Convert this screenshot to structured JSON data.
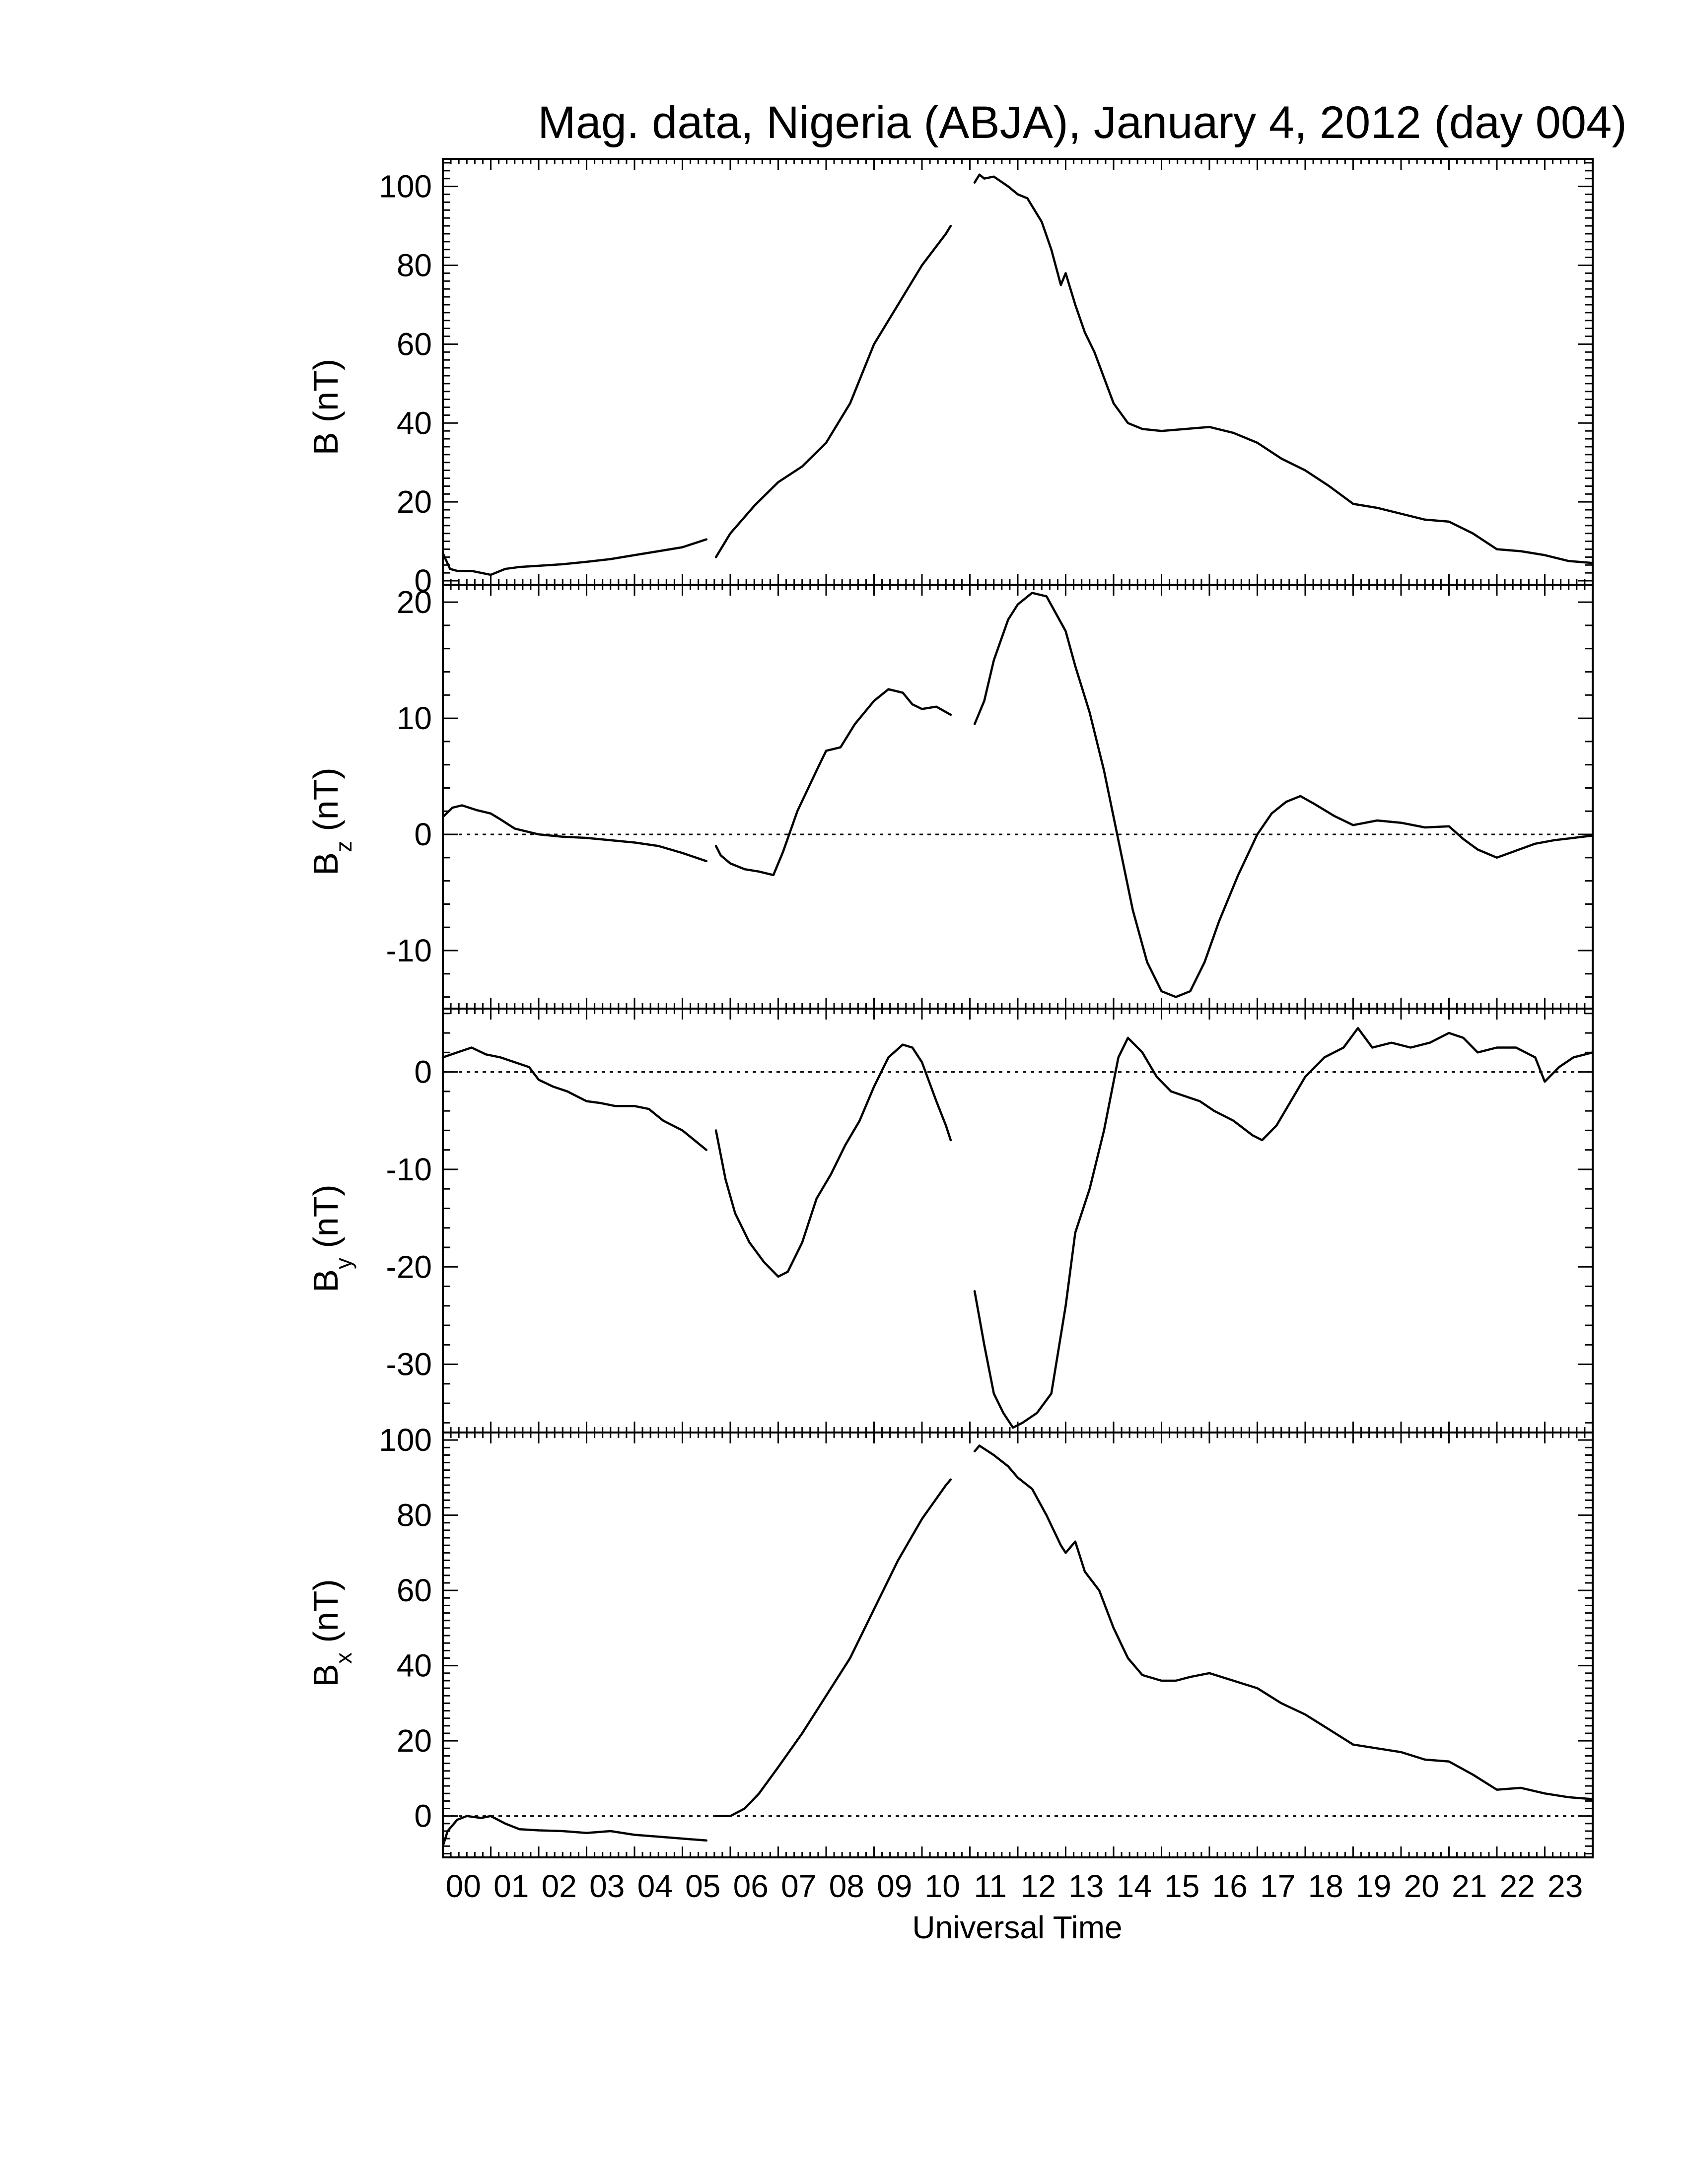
{
  "figure": {
    "title": "Mag. data, Nigeria (ABJA), January 4, 2012 (day 004)",
    "xlabel": "Universal Time"
  },
  "chart_data": [
    {
      "type": "line",
      "id": "B",
      "ylabel": "B (nT)",
      "ylabel_main": "B (nT)",
      "ylabel_sub": "",
      "ylabel_rest": "",
      "xlim": [
        0,
        24
      ],
      "ylim": [
        -1,
        107
      ],
      "yticks": [
        0,
        20,
        40,
        60,
        80,
        100
      ],
      "zero_line": false,
      "segments": [
        {
          "x": [
            0,
            0.15,
            0.3,
            0.6,
            1.0,
            1.3,
            1.6,
            2.0,
            2.5,
            3.0,
            3.5,
            4.0,
            4.5,
            5.0,
            5.5
          ],
          "y": [
            7,
            3,
            2.5,
            2.5,
            1.5,
            3,
            3.5,
            3.8,
            4.2,
            4.8,
            5.5,
            6.5,
            7.5,
            8.5,
            10.5
          ]
        },
        {
          "x": [
            5.7,
            6.0,
            6.5,
            7.0,
            7.5,
            8.0,
            8.5,
            9.0,
            9.5,
            10.0,
            10.5,
            10.6
          ],
          "y": [
            6,
            12,
            19,
            25,
            29,
            35,
            45,
            60,
            70,
            80,
            88,
            90
          ]
        },
        {
          "x": [
            11.1,
            11.2,
            11.3,
            11.5,
            11.8,
            12.0,
            12.2,
            12.5,
            12.7,
            12.9,
            13.0,
            13.2,
            13.4,
            13.6,
            14.0,
            14.3,
            14.6,
            15.0,
            15.5,
            16.0,
            16.5,
            17.0,
            17.5,
            18.0,
            18.5,
            19.0,
            19.5,
            20.0,
            20.5,
            21.0,
            21.5,
            22.0,
            22.5,
            23.0,
            23.5,
            24.0
          ],
          "y": [
            101,
            103,
            102,
            102.5,
            100,
            98,
            97,
            91,
            84,
            75,
            78,
            70,
            63,
            58,
            45,
            40,
            38.5,
            38,
            38.5,
            39,
            37.5,
            35,
            31,
            28,
            24,
            19.5,
            18.5,
            17,
            15.5,
            15,
            12,
            8,
            7.5,
            6.5,
            5,
            4.5
          ]
        }
      ]
    },
    {
      "type": "line",
      "id": "Bz",
      "ylabel": "Bz (nT)",
      "ylabel_main": "B",
      "ylabel_sub": "z",
      "ylabel_rest": " (nT)",
      "xlim": [
        0,
        24
      ],
      "ylim": [
        -15,
        21.5
      ],
      "yticks": [
        -10,
        0,
        10,
        20
      ],
      "zero_line": true,
      "segments": [
        {
          "x": [
            0,
            0.2,
            0.4,
            0.7,
            1.0,
            1.2,
            1.5,
            2.0,
            2.5,
            3.0,
            3.5,
            4.0,
            4.5,
            5.0,
            5.5
          ],
          "y": [
            1.5,
            2.3,
            2.5,
            2.1,
            1.8,
            1.3,
            0.5,
            0.0,
            -0.2,
            -0.3,
            -0.5,
            -0.7,
            -1.0,
            -1.6,
            -2.3
          ]
        },
        {
          "x": [
            5.7,
            5.8,
            6.0,
            6.3,
            6.6,
            6.9,
            7.1,
            7.4,
            7.8,
            8.0,
            8.3,
            8.6,
            9.0,
            9.3,
            9.6,
            9.8,
            10.0,
            10.3,
            10.6
          ],
          "y": [
            -1.0,
            -1.8,
            -2.5,
            -3.0,
            -3.2,
            -3.5,
            -1.5,
            2.0,
            5.5,
            7.2,
            7.5,
            9.5,
            11.5,
            12.5,
            12.2,
            11.2,
            10.8,
            11.0,
            10.3
          ]
        },
        {
          "x": [
            11.1,
            11.3,
            11.5,
            11.8,
            12.0,
            12.3,
            12.6,
            12.8,
            13.0,
            13.2,
            13.5,
            13.8,
            14.0,
            14.2,
            14.4,
            14.7,
            15.0,
            15.3,
            15.6,
            15.9,
            16.2,
            16.6,
            17.0,
            17.3,
            17.6,
            17.9,
            18.2,
            18.6,
            19.0,
            19.5,
            20.0,
            20.5,
            21.0,
            21.3,
            21.6,
            22.0,
            22.4,
            22.8,
            23.2,
            23.6,
            24.0
          ],
          "y": [
            9.5,
            11.5,
            15.0,
            18.5,
            19.8,
            20.8,
            20.5,
            19.0,
            17.5,
            14.5,
            10.5,
            5.5,
            1.5,
            -2.5,
            -6.5,
            -11.0,
            -13.5,
            -14.0,
            -13.5,
            -11.0,
            -7.5,
            -3.5,
            0.0,
            1.8,
            2.8,
            3.3,
            2.6,
            1.6,
            0.8,
            1.2,
            1.0,
            0.6,
            0.7,
            -0.4,
            -1.3,
            -2.0,
            -1.4,
            -0.8,
            -0.5,
            -0.3,
            -0.1
          ]
        }
      ]
    },
    {
      "type": "line",
      "id": "By",
      "ylabel": "By (nT)",
      "ylabel_main": "B",
      "ylabel_sub": "y",
      "ylabel_rest": " (nT)",
      "xlim": [
        0,
        24
      ],
      "ylim": [
        -37,
        6.5
      ],
      "yticks": [
        -30,
        -20,
        -10,
        0
      ],
      "zero_line": true,
      "segments": [
        {
          "x": [
            0,
            0.3,
            0.6,
            0.9,
            1.2,
            1.5,
            1.8,
            2.0,
            2.3,
            2.6,
            3.0,
            3.3,
            3.6,
            4.0,
            4.3,
            4.6,
            5.0,
            5.5
          ],
          "y": [
            1.5,
            2.0,
            2.5,
            1.8,
            1.5,
            1.0,
            0.5,
            -0.8,
            -1.5,
            -2.0,
            -3.0,
            -3.2,
            -3.5,
            -3.5,
            -3.8,
            -5.0,
            -6.0,
            -8.0
          ]
        },
        {
          "x": [
            5.7,
            5.9,
            6.1,
            6.4,
            6.7,
            7.0,
            7.2,
            7.5,
            7.8,
            8.1,
            8.4,
            8.7,
            9.0,
            9.3,
            9.6,
            9.8,
            10.0,
            10.3,
            10.5,
            10.6
          ],
          "y": [
            -6.0,
            -11.0,
            -14.5,
            -17.5,
            -19.5,
            -21.0,
            -20.5,
            -17.5,
            -13.0,
            -10.5,
            -7.5,
            -5.0,
            -1.5,
            1.5,
            2.8,
            2.5,
            1.0,
            -3.0,
            -5.5,
            -7.0
          ]
        },
        {
          "x": [
            11.1,
            11.3,
            11.5,
            11.7,
            11.9,
            12.1,
            12.4,
            12.7,
            13.0,
            13.2,
            13.5,
            13.8,
            14.1,
            14.3,
            14.6,
            14.9,
            15.2,
            15.5,
            15.8,
            16.1,
            16.5,
            16.9,
            17.1,
            17.4,
            17.7,
            18.0,
            18.4,
            18.8,
            19.1,
            19.4,
            19.8,
            20.2,
            20.6,
            21.0,
            21.3,
            21.6,
            22.0,
            22.4,
            22.8,
            23.0,
            23.3,
            23.6,
            24.0
          ],
          "y": [
            -22.5,
            -28.0,
            -33.0,
            -35.0,
            -36.5,
            -36.0,
            -35.0,
            -33.0,
            -24.0,
            -16.5,
            -12.0,
            -6.0,
            1.5,
            3.5,
            2.0,
            -0.5,
            -2.0,
            -2.5,
            -3.0,
            -4.0,
            -5.0,
            -6.5,
            -7.0,
            -5.5,
            -3.0,
            -0.5,
            1.5,
            2.5,
            4.5,
            2.5,
            3.0,
            2.5,
            3.0,
            4.0,
            3.5,
            2.0,
            2.5,
            2.5,
            1.5,
            -1.0,
            0.5,
            1.5,
            2.0
          ]
        }
      ]
    },
    {
      "type": "line",
      "id": "Bx",
      "ylabel": "Bx (nT)",
      "ylabel_main": "B",
      "ylabel_sub": "x",
      "ylabel_rest": " (nT)",
      "xlim": [
        0,
        24
      ],
      "ylim": [
        -11,
        102
      ],
      "yticks": [
        0,
        20,
        40,
        60,
        80,
        100
      ],
      "zero_line": true,
      "segments": [
        {
          "x": [
            0,
            0.1,
            0.3,
            0.5,
            0.8,
            1.0,
            1.3,
            1.6,
            2.0,
            2.5,
            3.0,
            3.5,
            4.0,
            4.5,
            5.0,
            5.5
          ],
          "y": [
            -8.0,
            -4.0,
            -1.0,
            0.0,
            -0.5,
            0.0,
            -2.0,
            -3.5,
            -3.8,
            -4.0,
            -4.5,
            -4.0,
            -5.0,
            -5.5,
            -6.0,
            -6.5
          ]
        },
        {
          "x": [
            5.7,
            6.0,
            6.3,
            6.6,
            7.0,
            7.5,
            8.0,
            8.5,
            9.0,
            9.5,
            10.0,
            10.5,
            10.6
          ],
          "y": [
            0.0,
            0.0,
            2.0,
            6.0,
            13.0,
            22.0,
            32.0,
            42.0,
            55.0,
            68.0,
            79.0,
            88.0,
            89.5
          ]
        },
        {
          "x": [
            11.1,
            11.2,
            11.5,
            11.8,
            12.0,
            12.3,
            12.6,
            12.9,
            13.0,
            13.2,
            13.4,
            13.7,
            14.0,
            14.3,
            14.6,
            15.0,
            15.3,
            15.6,
            16.0,
            16.5,
            17.0,
            17.5,
            18.0,
            18.5,
            19.0,
            19.5,
            20.0,
            20.5,
            21.0,
            21.5,
            22.0,
            22.5,
            23.0,
            23.5,
            24.0
          ],
          "y": [
            97.0,
            98.5,
            96.0,
            93.0,
            90.0,
            87.0,
            80.0,
            72.0,
            70.0,
            73.0,
            65.0,
            60.0,
            50.0,
            42.0,
            37.5,
            36.0,
            36.0,
            37.0,
            38.0,
            36.0,
            34.0,
            30.0,
            27.0,
            23.0,
            19.0,
            18.0,
            17.0,
            15.0,
            14.5,
            11.0,
            7.0,
            7.5,
            6.0,
            5.0,
            4.5
          ]
        }
      ]
    }
  ],
  "x_tick_labels": [
    "00",
    "01",
    "02",
    "03",
    "04",
    "05",
    "06",
    "07",
    "08",
    "09",
    "10",
    "11",
    "12",
    "13",
    "14",
    "15",
    "16",
    "17",
    "18",
    "19",
    "20",
    "21",
    "22",
    "23"
  ]
}
